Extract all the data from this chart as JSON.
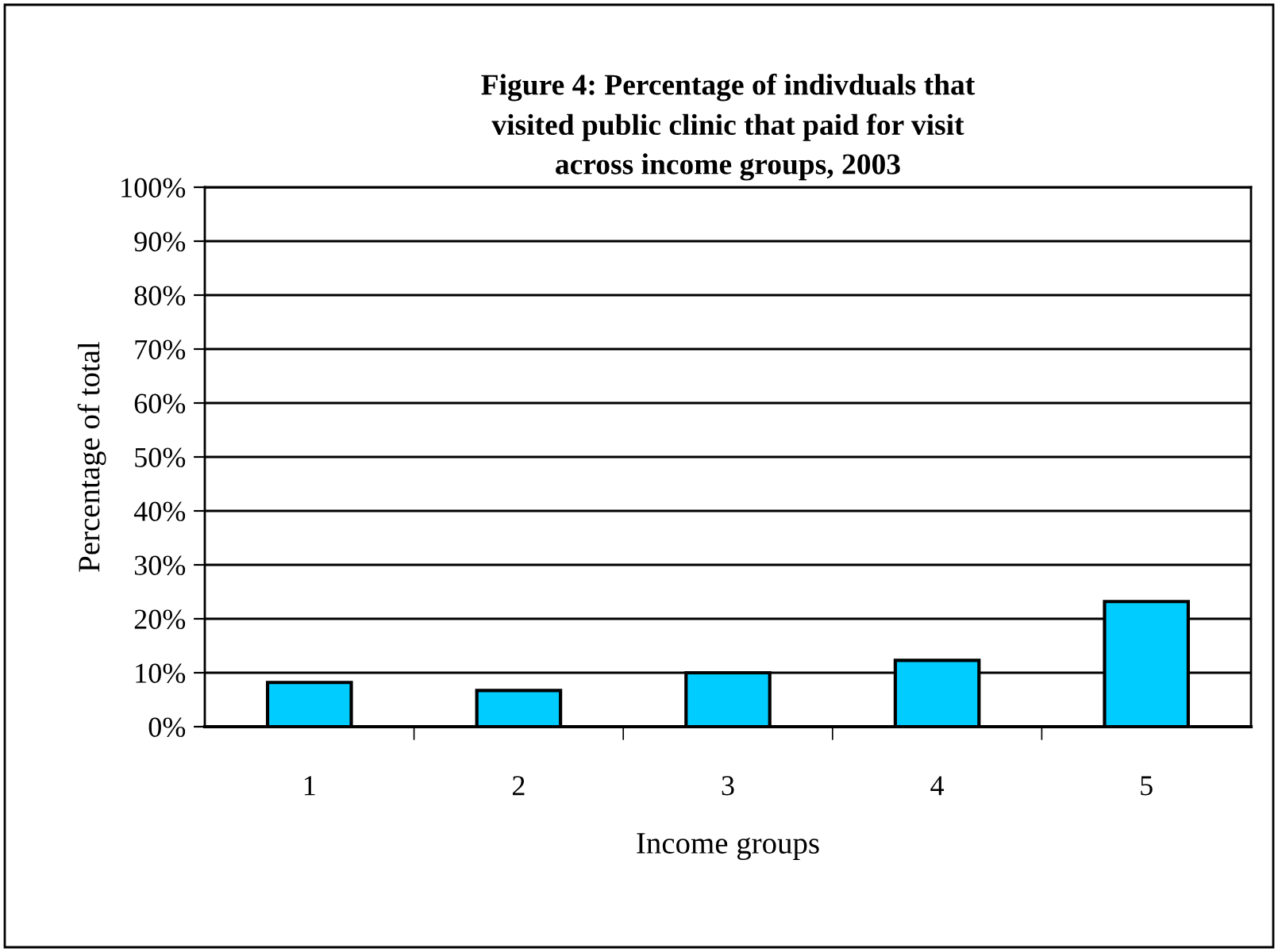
{
  "chart_data": {
    "type": "bar",
    "title": "Figure 4: Percentage of indivduals that\nvisited public clinic that paid for visit\nacross income groups, 2003",
    "xlabel": "Income groups",
    "ylabel": "Percentage of total",
    "categories": [
      "1",
      "2",
      "3",
      "4",
      "5"
    ],
    "values": [
      8.2,
      6.7,
      10.0,
      12.3,
      23.2
    ],
    "color": "#00ccff",
    "ylim": [
      0,
      100
    ],
    "yticks": [
      {
        "value": 0,
        "label": "0%"
      },
      {
        "value": 10,
        "label": "10%"
      },
      {
        "value": 20,
        "label": "20%"
      },
      {
        "value": 30,
        "label": "30%"
      },
      {
        "value": 40,
        "label": "40%"
      },
      {
        "value": 50,
        "label": "50%"
      },
      {
        "value": 60,
        "label": "60%"
      },
      {
        "value": 70,
        "label": "70%"
      },
      {
        "value": 80,
        "label": "80%"
      },
      {
        "value": 90,
        "label": "90%"
      },
      {
        "value": 100,
        "label": "100%"
      }
    ],
    "grid": "y",
    "legend": false
  }
}
